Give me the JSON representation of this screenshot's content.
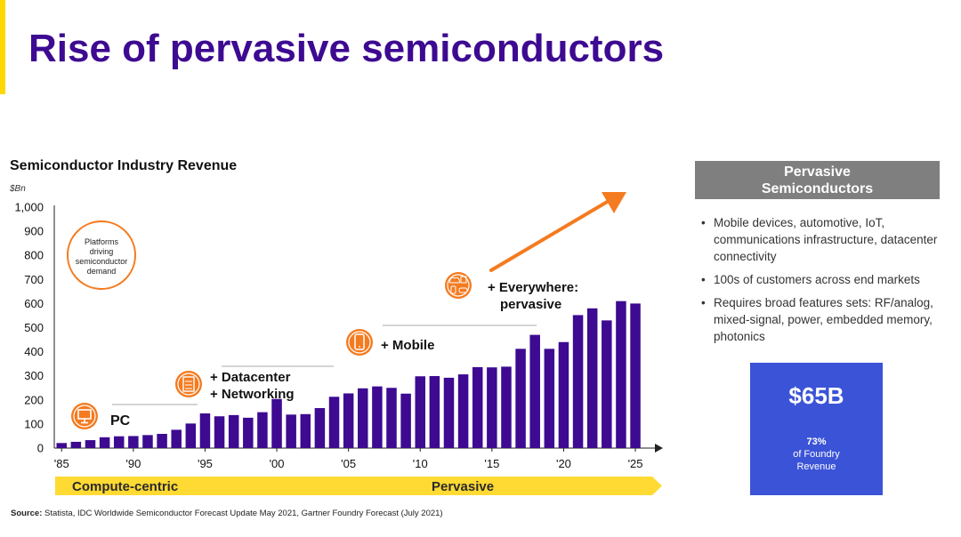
{
  "slide": {
    "title": "Rise of pervasive semiconductors",
    "accent_color": "#FFD700",
    "title_color": "#3D0A91"
  },
  "chart_data": {
    "type": "bar",
    "title": "Semiconductor Industry Revenue",
    "unit": "$Bn",
    "categories": [
      "1985",
      "1986",
      "1987",
      "1988",
      "1989",
      "1990",
      "1991",
      "1992",
      "1993",
      "1994",
      "1995",
      "1996",
      "1997",
      "1998",
      "1999",
      "2000",
      "2001",
      "2002",
      "2003",
      "2004",
      "2005",
      "2006",
      "2007",
      "2008",
      "2009",
      "2010",
      "2011",
      "2012",
      "2013",
      "2014",
      "2015",
      "2016",
      "2017",
      "2018",
      "2019",
      "2020",
      "2021",
      "2022",
      "2023",
      "2024",
      "2025"
    ],
    "values": [
      21,
      26,
      33,
      45,
      49,
      50,
      54,
      59,
      76,
      102,
      144,
      132,
      137,
      126,
      149,
      204,
      139,
      141,
      166,
      213,
      227,
      248,
      256,
      250,
      226,
      298,
      299,
      292,
      306,
      336,
      335,
      338,
      412,
      470,
      412,
      440,
      552,
      580,
      530,
      610,
      600
    ],
    "ylim": [
      0,
      1000
    ],
    "yticks": [
      "0",
      "100",
      "200",
      "300",
      "400",
      "500",
      "600",
      "700",
      "800",
      "900",
      "1,000"
    ],
    "xtick_labels": [
      "'85",
      "'90",
      "'95",
      "'00",
      "'05",
      "'10",
      "'15",
      "'20",
      "'25"
    ],
    "bar_color": "#3D0A91",
    "annotations": [
      {
        "icon": "monitor-icon",
        "lines": [
          "PC"
        ]
      },
      {
        "icon": "server-icon",
        "lines": [
          "+ Datacenter",
          "+ Networking"
        ]
      },
      {
        "icon": "smartphone-icon",
        "lines": [
          "+ Mobile"
        ]
      },
      {
        "icon": "iot-devices-icon",
        "lines": [
          "+ Everywhere:",
          "pervasive"
        ]
      }
    ],
    "callout": [
      "Platforms",
      "driving",
      "semiconductor",
      "demand"
    ],
    "bands": [
      "Compute-centric",
      "Pervasive"
    ],
    "accent_color": "#F47B20",
    "band_color": "#FFDA33"
  },
  "sidebar": {
    "header_lines": [
      "Pervasive",
      "Semiconductors"
    ],
    "bullets": [
      "Mobile devices, automotive, IoT, communications infrastructure, datacenter connectivity",
      "100s of customers across end markets",
      "Requires broad features sets: RF/analog, mixed-signal, power, embedded memory, photonics"
    ],
    "stat": {
      "value": "$65B",
      "percent": "73%",
      "desc_lines": [
        "of Foundry",
        "Revenue"
      ],
      "color": "#3B53D6"
    }
  },
  "source": {
    "label": "Source:",
    "text": " Statista, IDC Worldwide Semiconductor Forecast Update May 2021, Gartner Foundry Forecast (July 2021)"
  }
}
